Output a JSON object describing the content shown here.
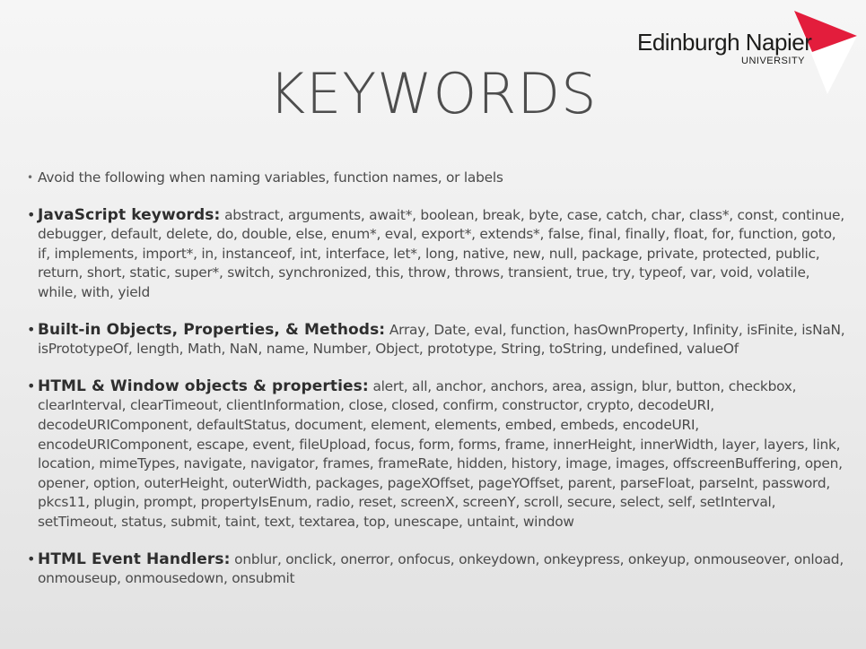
{
  "logo": {
    "name": "Edinburgh Napier",
    "sub": "UNIVERSITY"
  },
  "title": "KEYWORDS",
  "intro": "Avoid the following when naming variables, function names, or labels",
  "sections": [
    {
      "heading": "JavaScript keywords:",
      "text": "abstract, arguments, await*, boolean, break, byte, case, catch, char, class*, const, continue, debugger, default, delete, do, double, else, enum*, eval, export*, extends*, false, final, finally, float, for, function, goto, if, implements, import*, in, instanceof, int, interface, let*, long, native, new, null, package, private, protected, public, return, short, static, super*, switch, synchronized, this, throw, throws, transient, true, try, typeof, var, void, volatile, while, with, yield"
    },
    {
      "heading": "Built-in Objects, Properties, & Methods:",
      "text": "Array, Date, eval, function, hasOwnProperty, Infinity, isFinite, isNaN, isPrototypeOf, length, Math, NaN, name, Number, Object, prototype, String, toString, undefined, valueOf"
    },
    {
      "heading": "HTML & Window objects & properties:",
      "text": "alert, all, anchor, anchors, area, assign, blur, button, checkbox, clearInterval, clearTimeout, clientInformation, close, closed, confirm, constructor, crypto, decodeURI, decodeURIComponent, defaultStatus, document, element, elements, embed, embeds, encodeURI, encodeURIComponent, escape, event, fileUpload, focus, form, forms, frame, innerHeight, innerWidth, layer, layers, link, location, mimeTypes, navigate, navigator, frames, frameRate, hidden, history, image, images, offscreenBuffering, open, opener, option, outerHeight, outerWidth, packages, pageXOffset, pageYOffset, parent, parseFloat, parseInt, password, pkcs11, plugin, prompt, propertyIsEnum, radio, reset, screenX, screenY, scroll, secure, select, self, setInterval, setTimeout, status, submit, taint, text, textarea, top, unescape, untaint, window"
    },
    {
      "heading": "HTML Event Handlers:",
      "text": "onblur, onclick, onerror, onfocus, onkeydown, onkeypress, onkeyup, onmouseover, onload, onmouseup, onmousedown, onsubmit"
    }
  ],
  "colors": {
    "logo_red": "#e31d3c",
    "text": "#4b4b4b",
    "heading": "#2e2e2e"
  }
}
